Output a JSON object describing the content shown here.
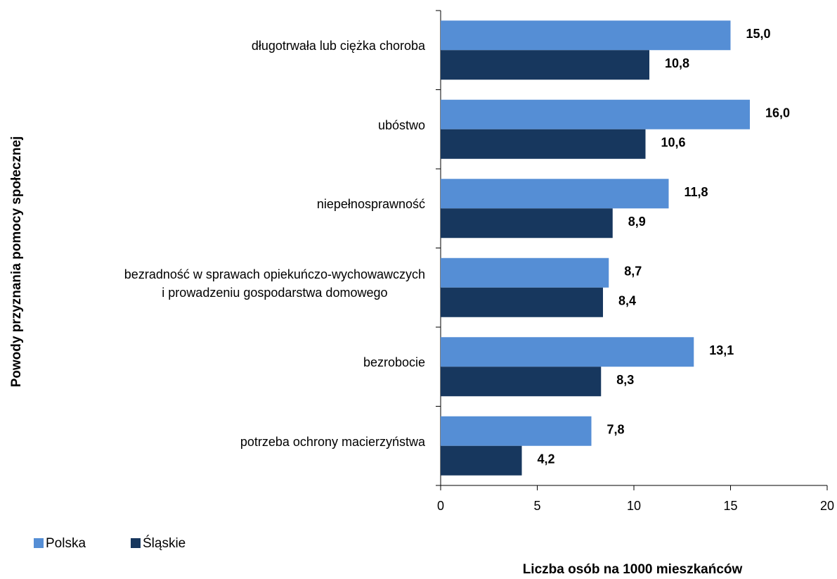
{
  "chart_data": {
    "type": "bar",
    "orientation": "horizontal",
    "y_axis_label": "Powody przyznania pomocy społecznej",
    "x_axis_label": "Liczba osób na 1000 mieszkańców",
    "categories": [
      "długotrwała lub ciężka choroba",
      "ubóstwo",
      "niepełnosprawność",
      "bezradność w sprawach opiekuńczo-wychowawczych\ni prowadzeniu gospodarstwa domowego",
      "bezrobocie",
      "potrzeba ochrony macierzyństwa"
    ],
    "series": [
      {
        "name": "Polska",
        "color": "#558ed5",
        "values": [
          15.0,
          16.0,
          11.8,
          8.7,
          13.1,
          7.8
        ],
        "value_labels": [
          "15,0",
          "16,0",
          "11,8",
          "8,7",
          "13,1",
          "7,8"
        ]
      },
      {
        "name": "Śląskie",
        "color": "#17375e",
        "values": [
          10.8,
          10.6,
          8.9,
          8.4,
          8.3,
          4.2
        ],
        "value_labels": [
          "10,8",
          "10,6",
          "8,9",
          "8,4",
          "8,3",
          "4,2"
        ]
      }
    ],
    "xlim": [
      0,
      20
    ],
    "xticks": [
      0,
      5,
      10,
      15,
      20
    ],
    "legend": "bottom-left"
  }
}
